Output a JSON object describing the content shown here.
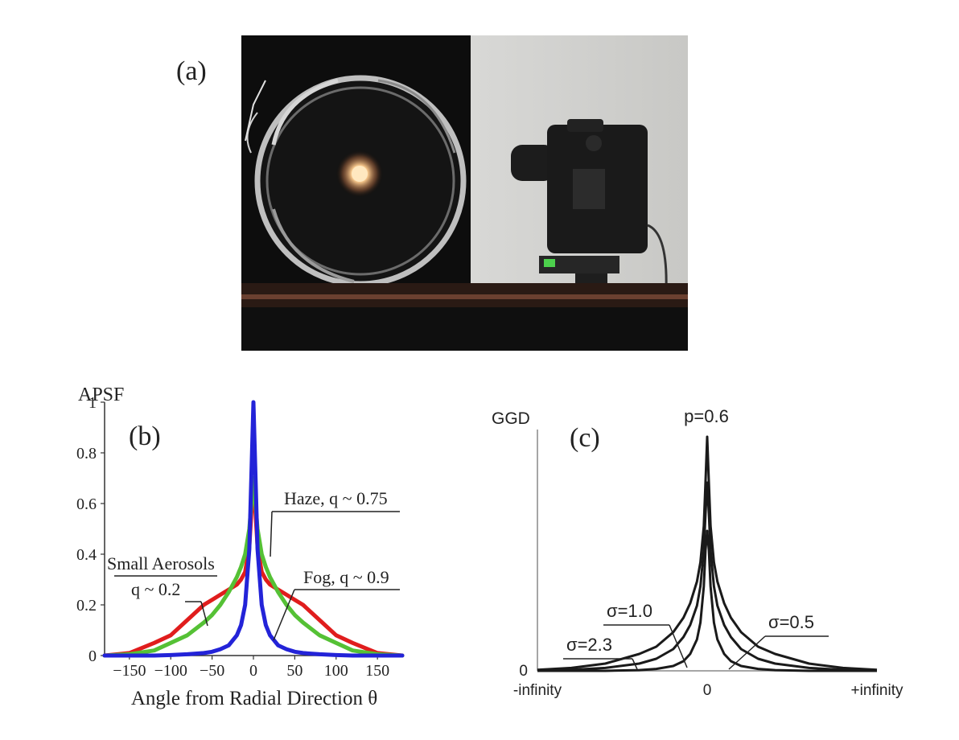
{
  "panels": {
    "a": {
      "label": "(a)"
    },
    "b": {
      "label": "(b)"
    },
    "c": {
      "label": "(c)"
    }
  },
  "colors": {
    "fog": "#2323d8",
    "haze": "#55c135",
    "small_aerosols": "#e01d1d",
    "ggd": "#1a1a1a"
  },
  "chart_data": [
    {
      "panel": "b",
      "type": "line",
      "ylabel": "APSF",
      "xlabel": "Angle from Radial Direction θ",
      "xlim": [
        -180,
        180
      ],
      "ylim": [
        0,
        1
      ],
      "x_ticks": [
        -150,
        -100,
        -50,
        0,
        50,
        100,
        150
      ],
      "x_tick_labels": [
        "−150",
        "−100",
        "−50",
        "0",
        "50",
        "100",
        "150"
      ],
      "y_ticks": [
        0,
        0.2,
        0.4,
        0.6,
        0.8,
        1
      ],
      "y_tick_labels": [
        "0",
        "0.2",
        "0.4",
        "0.6",
        "0.8",
        "1"
      ],
      "x": [
        -180,
        -150,
        -120,
        -100,
        -80,
        -60,
        -50,
        -40,
        -30,
        -20,
        -15,
        -10,
        -5,
        0,
        5,
        10,
        15,
        20,
        30,
        40,
        50,
        60,
        80,
        100,
        120,
        150,
        180
      ],
      "series": [
        {
          "color_key": "small_aerosols",
          "values": [
            0.0,
            0.01,
            0.05,
            0.08,
            0.14,
            0.2,
            0.22,
            0.24,
            0.26,
            0.28,
            0.3,
            0.33,
            0.43,
            0.7,
            0.43,
            0.33,
            0.3,
            0.28,
            0.26,
            0.24,
            0.22,
            0.2,
            0.14,
            0.08,
            0.05,
            0.01,
            0.0
          ]
        },
        {
          "color_key": "haze",
          "values": [
            0.0,
            0.005,
            0.02,
            0.05,
            0.08,
            0.13,
            0.16,
            0.2,
            0.25,
            0.31,
            0.35,
            0.4,
            0.5,
            0.7,
            0.5,
            0.4,
            0.35,
            0.31,
            0.25,
            0.2,
            0.16,
            0.13,
            0.08,
            0.05,
            0.02,
            0.005,
            0.0
          ]
        },
        {
          "color_key": "fog",
          "values": [
            0.0,
            0.0,
            0.0,
            0.002,
            0.005,
            0.01,
            0.015,
            0.025,
            0.04,
            0.08,
            0.12,
            0.2,
            0.42,
            1.0,
            0.42,
            0.2,
            0.12,
            0.08,
            0.04,
            0.025,
            0.015,
            0.01,
            0.005,
            0.002,
            0.0,
            0.0,
            0.0
          ]
        }
      ],
      "annotations": [
        {
          "text": "Haze, q ~ 0.75",
          "series": 1
        },
        {
          "text": "Small Aerosols",
          "series": 0
        },
        {
          "text": "q ~ 0.2",
          "series": 0
        },
        {
          "text": "Fog, q ~ 0.9",
          "series": 2
        }
      ]
    },
    {
      "panel": "c",
      "type": "line",
      "ylabel": "GGD",
      "title": "p=0.6",
      "xlim": [
        -5,
        5
      ],
      "ylim": [
        0,
        1
      ],
      "x_ticks": [
        -5,
        0,
        5
      ],
      "x_tick_labels": [
        "-infinity",
        "0",
        "+infinity"
      ],
      "y_ticks": [
        0
      ],
      "y_tick_labels": [
        "0"
      ],
      "x": [
        -5,
        -4,
        -3,
        -2,
        -1.5,
        -1,
        -0.7,
        -0.5,
        -0.3,
        -0.2,
        -0.1,
        -0.05,
        0,
        0.05,
        0.1,
        0.2,
        0.3,
        0.5,
        0.7,
        1,
        1.5,
        2,
        3,
        4,
        5
      ],
      "series": [
        {
          "sigma_label": "σ=0.5",
          "values": [
            0.0,
            0.0,
            0.0,
            0.003,
            0.008,
            0.02,
            0.04,
            0.07,
            0.13,
            0.2,
            0.35,
            0.5,
            0.58,
            0.5,
            0.35,
            0.2,
            0.13,
            0.07,
            0.04,
            0.02,
            0.008,
            0.003,
            0.0,
            0.0,
            0.0
          ]
        },
        {
          "sigma_label": "σ=1.0",
          "values": [
            0.0,
            0.004,
            0.012,
            0.03,
            0.05,
            0.09,
            0.14,
            0.19,
            0.27,
            0.35,
            0.5,
            0.65,
            0.78,
            0.65,
            0.5,
            0.35,
            0.27,
            0.19,
            0.14,
            0.09,
            0.05,
            0.03,
            0.012,
            0.004,
            0.0
          ]
        },
        {
          "sigma_label": "σ=2.3",
          "values": [
            0.004,
            0.012,
            0.03,
            0.07,
            0.1,
            0.16,
            0.22,
            0.28,
            0.37,
            0.45,
            0.6,
            0.78,
            0.97,
            0.78,
            0.6,
            0.45,
            0.37,
            0.28,
            0.22,
            0.16,
            0.1,
            0.07,
            0.03,
            0.012,
            0.004
          ]
        }
      ],
      "annotations": [
        {
          "text": "σ=1.0",
          "series": 1
        },
        {
          "text": "σ=2.3",
          "series": 2
        },
        {
          "text": "σ=0.5",
          "series": 0
        }
      ]
    }
  ]
}
